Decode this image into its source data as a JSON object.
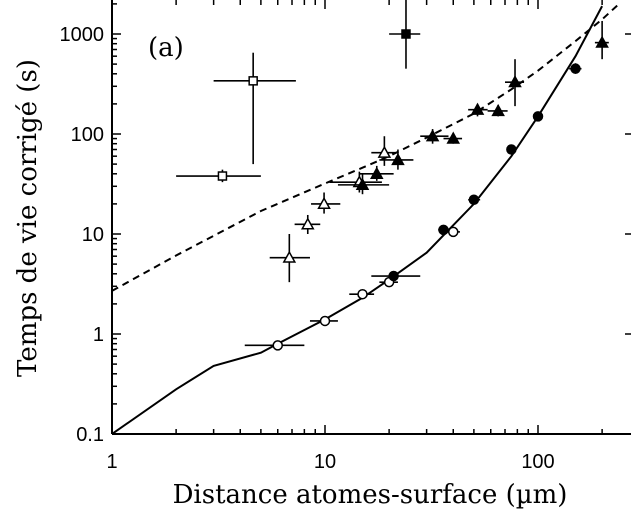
{
  "chart_data": {
    "type": "scatter",
    "panel_label": "(a)",
    "xlabel": "Distance atomes-surface (µm)",
    "ylabel": "Temps de vie corrigé (s)",
    "x_scale": "log",
    "y_scale": "log",
    "xlim": [
      1,
      300
    ],
    "ylim": [
      0.1,
      2000
    ],
    "x_ticks": [
      1,
      10,
      100
    ],
    "x_tick_labels": [
      "1",
      "10",
      "100"
    ],
    "y_ticks": [
      0.1,
      1,
      10,
      100,
      1000
    ],
    "y_tick_labels": [
      "0.1",
      "1",
      "10",
      "100",
      "1000"
    ],
    "grid": false,
    "series": [
      {
        "marker": "square-open",
        "points": [
          {
            "x": 3.3,
            "y": 38,
            "xerr": [
              2.0,
              5.0
            ],
            "yerr": [
              33,
              44
            ]
          },
          {
            "x": 4.6,
            "y": 340,
            "xerr": [
              3.0,
              7.3
            ],
            "yerr": [
              50,
              650
            ]
          }
        ]
      },
      {
        "marker": "triangle-open",
        "points": [
          {
            "x": 6.8,
            "y": 5.8,
            "xerr": [
              5.5,
              8.5
            ],
            "yerr": [
              3.3,
              10
            ]
          },
          {
            "x": 8.3,
            "y": 12.5,
            "xerr": [
              7.2,
              9.5
            ],
            "yerr": [
              10,
              15.5
            ]
          },
          {
            "x": 9.9,
            "y": 20,
            "xerr": [
              8.6,
              11.8
            ],
            "yerr": [
              16,
              26
            ]
          },
          {
            "x": 14.5,
            "y": 33,
            "xerr": [
              10.5,
              18.5
            ],
            "yerr": [
              26,
              42
            ]
          },
          {
            "x": 19.0,
            "y": 65,
            "xerr": [
              16.5,
              22
            ],
            "yerr": [
              48,
              95
            ]
          }
        ]
      },
      {
        "marker": "triangle-filled",
        "points": [
          {
            "x": 15.0,
            "y": 31,
            "xerr": [
              11.5,
              20
            ],
            "yerr": [
              25,
              40
            ]
          },
          {
            "x": 17.5,
            "y": 40,
            "xerr": [
              14.5,
              21
            ],
            "yerr": [
              34,
              48
            ]
          },
          {
            "x": 22.0,
            "y": 55,
            "xerr": [
              18,
              26
            ],
            "yerr": [
              44,
              70
            ]
          },
          {
            "x": 32.0,
            "y": 95,
            "xerr": [
              28,
              38
            ],
            "yerr": [
              80,
              112
            ]
          },
          {
            "x": 40.0,
            "y": 90,
            "xerr": [
              36,
              44
            ],
            "yerr": [
              80,
              102
            ]
          },
          {
            "x": 52.0,
            "y": 175,
            "xerr": [
              47,
              58
            ],
            "yerr": [
              150,
              200
            ]
          },
          {
            "x": 65.0,
            "y": 170,
            "xerr": [
              58,
              72
            ],
            "yerr": [
              150,
              195
            ]
          },
          {
            "x": 78.0,
            "y": 330,
            "xerr": [
              70,
              86
            ],
            "yerr": [
              190,
              560
            ]
          },
          {
            "x": 200.0,
            "y": 820,
            "xerr": [
              185,
              215
            ],
            "yerr": [
              560,
              1350
            ]
          }
        ]
      },
      {
        "marker": "square-filled",
        "points": [
          {
            "x": 24.0,
            "y": 1000,
            "xerr": [
              20,
              28
            ],
            "yerr": [
              450,
              2200
            ]
          }
        ]
      },
      {
        "marker": "circle-open",
        "points": [
          {
            "x": 6.0,
            "y": 0.77,
            "xerr": [
              4.2,
              8.0
            ],
            "yerr": [
              0.72,
              0.82
            ]
          },
          {
            "x": 10.0,
            "y": 1.35,
            "xerr": [
              8.5,
              11.5
            ],
            "yerr": [
              1.28,
              1.42
            ]
          },
          {
            "x": 15.0,
            "y": 2.5,
            "xerr": [
              13,
              17
            ],
            "yerr": [
              2.38,
              2.62
            ]
          },
          {
            "x": 20.0,
            "y": 3.3,
            "xerr": [
              18,
              22
            ],
            "yerr": [
              3.1,
              3.5
            ]
          },
          {
            "x": 40.0,
            "y": 10.5,
            "xerr": [
              37,
              43
            ],
            "yerr": [
              10.0,
              11.0
            ]
          }
        ]
      },
      {
        "marker": "circle-filled",
        "points": [
          {
            "x": 21.0,
            "y": 3.8,
            "xerr": [
              16.5,
              28
            ],
            "yerr": [
              3.6,
              4.0
            ]
          },
          {
            "x": 36.0,
            "y": 11,
            "xerr": [
              34,
              38.5
            ],
            "yerr": [
              10.5,
              11.5
            ]
          },
          {
            "x": 50.0,
            "y": 22,
            "xerr": [
              47,
              53.5
            ],
            "yerr": [
              21,
              23
            ]
          },
          {
            "x": 75.0,
            "y": 70,
            "xerr": [
              72,
              78
            ],
            "yerr": [
              67,
              73
            ]
          },
          {
            "x": 100.0,
            "y": 150,
            "xerr": [
              96,
              104
            ],
            "yerr": [
              144,
              156
            ]
          },
          {
            "x": 150.0,
            "y": 450,
            "xerr": [
              140,
              160
            ],
            "yerr": [
              400,
              510
            ]
          }
        ]
      }
    ],
    "curves": [
      {
        "style": "solid",
        "points": [
          [
            1,
            0.1
          ],
          [
            2,
            0.28
          ],
          [
            3,
            0.48
          ],
          [
            5,
            0.65
          ],
          [
            6,
            0.8
          ],
          [
            10,
            1.4
          ],
          [
            15,
            2.3
          ],
          [
            20,
            3.5
          ],
          [
            30,
            6.5
          ],
          [
            50,
            20
          ],
          [
            75,
            60
          ],
          [
            100,
            150
          ],
          [
            150,
            600
          ],
          [
            200,
            1900
          ]
        ]
      },
      {
        "style": "dashed",
        "points": [
          [
            1,
            2.7
          ],
          [
            2,
            6.1
          ],
          [
            5,
            17
          ],
          [
            10,
            32
          ],
          [
            15,
            46
          ],
          [
            20,
            60
          ],
          [
            30,
            92
          ],
          [
            50,
            160
          ],
          [
            75,
            280
          ],
          [
            100,
            430
          ],
          [
            150,
            850
          ],
          [
            200,
            1400
          ],
          [
            240,
            2000
          ]
        ]
      }
    ]
  }
}
